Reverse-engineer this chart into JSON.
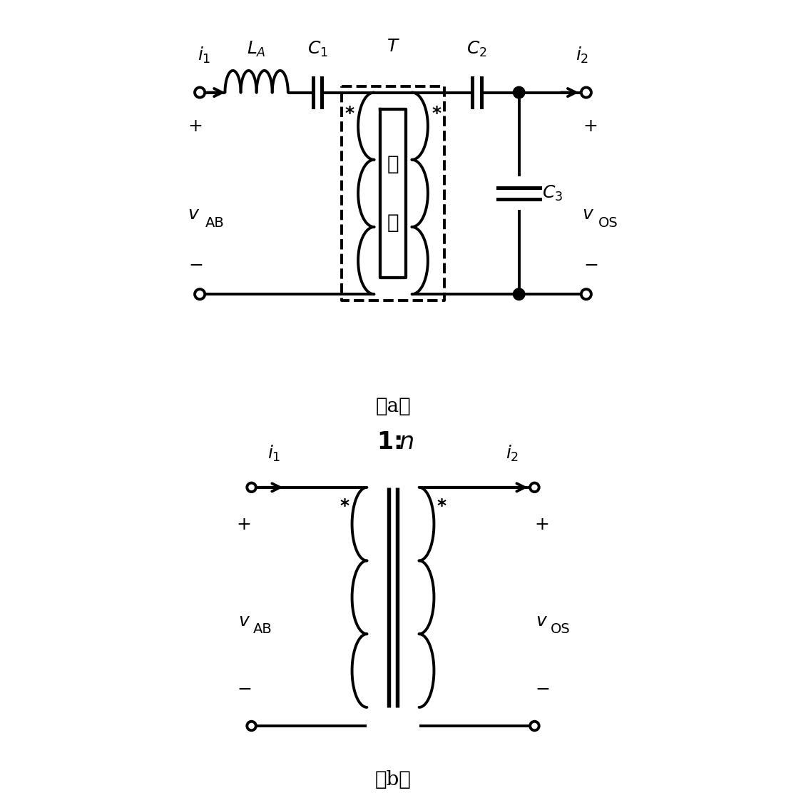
{
  "fig_width": 11.02,
  "fig_height": 11.11,
  "bg_color": "#ffffff",
  "line_color": "#000000",
  "lw": 2.8,
  "diagram_a": {
    "caption": "（a）",
    "label_i1": "$i_1$",
    "label_i2": "$i_2$",
    "label_LA": "$L_A$",
    "label_C1": "$C_1$",
    "label_T": "$T$",
    "label_C2": "$C_2$",
    "label_C3": "$C_3$",
    "label_vAB_v": "$v$",
    "label_vAB_sub": "AB",
    "label_vOS_v": "$v$",
    "label_vOS_sub": "OS",
    "chinese_1": "气",
    "chinese_2": "隙"
  },
  "diagram_b": {
    "caption": "（b）",
    "label_i1": "$i_1$",
    "label_i2": "$i_2$",
    "label_ratio_bold": "1:",
    "label_ratio_n": "$n$",
    "label_vAB_v": "$v$",
    "label_vAB_sub": "AB",
    "label_vOS_v": "$v$",
    "label_vOS_sub": "OS"
  }
}
